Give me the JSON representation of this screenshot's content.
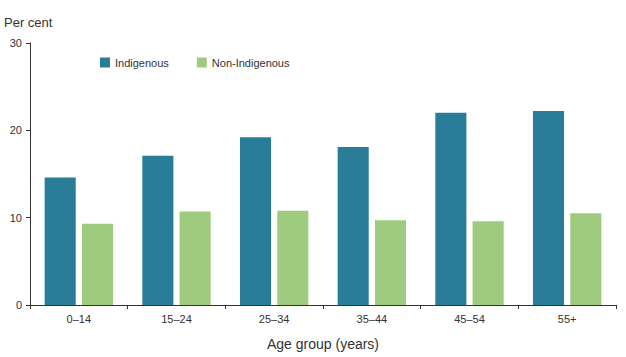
{
  "chart_data": {
    "type": "bar",
    "y_label": "Per cent",
    "x_label": "Age group (years)",
    "categories": [
      "0–14",
      "15–24",
      "25–34",
      "35–44",
      "45–54",
      "55+"
    ],
    "series": [
      {
        "name": "Indigenous",
        "color": "#2a7d98",
        "values": [
          14.6,
          17.1,
          19.2,
          18.1,
          22.0,
          22.2
        ]
      },
      {
        "name": "Non-Indigenous",
        "color": "#9fcb7f",
        "values": [
          9.3,
          10.7,
          10.8,
          9.7,
          9.6,
          10.5
        ]
      }
    ],
    "ylim": [
      0,
      30
    ],
    "yticks": [
      0,
      10,
      20,
      30
    ],
    "grid": false,
    "legend": "top-left"
  }
}
